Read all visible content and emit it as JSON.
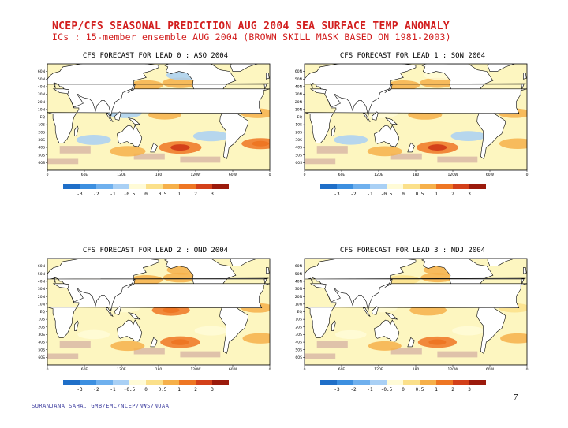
{
  "header": {
    "title": "NCEP/CFS SEASONAL PREDICTION AUG 2004 SEA SURFACE TEMP ANOMALY",
    "subtitle": "ICs : 15-member ensemble AUG 2004 (BROWN SKILL MASK BASED ON 1981-2003)"
  },
  "footer": {
    "credit": "SURANJANA SAHA, GMB/EMC/NCEP/NWS/NOAA",
    "page_number": "7"
  },
  "colors": {
    "ocean_neutral": "#fdf6c0",
    "land": "#ffffff",
    "title_red": "#d21e1e",
    "skill_mask_brown": "#d9b9a6"
  },
  "chart_data": [
    {
      "type": "heatmap",
      "title": "CFS FORECAST FOR LEAD 0 : ASO 2004",
      "lead": 0,
      "season": "ASO 2004",
      "y_ticks": [
        "60N",
        "50N",
        "40N",
        "30N",
        "20N",
        "10N",
        "EQ",
        "10S",
        "20S",
        "30S",
        "40S",
        "50S",
        "60S"
      ],
      "x_ticks": [
        "0",
        "60E",
        "120E",
        "180",
        "120W",
        "60W",
        "0"
      ],
      "anomalies": [
        {
          "region": "NE Pacific",
          "lon": 215,
          "lat": 45,
          "value": 0.8
        },
        {
          "region": "NW Pacific",
          "lon": 160,
          "lat": 42,
          "value": 0.6
        },
        {
          "region": "Central Equatorial Pacific",
          "lon": 190,
          "lat": 3,
          "value": 0.5
        },
        {
          "region": "Tropical Atlantic",
          "lon": 340,
          "lat": 5,
          "value": 0.6
        },
        {
          "region": "South Pacific",
          "lon": 215,
          "lat": -40,
          "value": 1.5
        },
        {
          "region": "S Indian Ocean",
          "lon": 75,
          "lat": -30,
          "value": -0.7
        },
        {
          "region": "Southern Ocean",
          "lon": 130,
          "lat": -45,
          "value": 0.8
        },
        {
          "region": "Maritime Continent",
          "lon": 125,
          "lat": 5,
          "value": -0.6
        },
        {
          "region": "E Pacific",
          "lon": 265,
          "lat": -25,
          "value": -0.8
        },
        {
          "region": "S Atlantic",
          "lon": 345,
          "lat": -35,
          "value": 1.0
        },
        {
          "region": "Gulf of Alaska",
          "lon": 220,
          "lat": 55,
          "value": -0.6
        }
      ]
    },
    {
      "type": "heatmap",
      "title": "CFS FORECAST FOR LEAD 1 : SON 2004",
      "lead": 1,
      "season": "SON 2004",
      "y_ticks": [
        "60N",
        "50N",
        "40N",
        "30N",
        "20N",
        "10N",
        "EQ",
        "10S",
        "20S",
        "30S",
        "40S",
        "50S",
        "60S"
      ],
      "x_ticks": [
        "0",
        "60E",
        "120E",
        "180",
        "120W",
        "60W",
        "0"
      ],
      "anomalies": [
        {
          "region": "NE Pacific",
          "lon": 215,
          "lat": 45,
          "value": 0.7
        },
        {
          "region": "NW Pacific",
          "lon": 160,
          "lat": 42,
          "value": 0.5
        },
        {
          "region": "Central Equatorial Pacific",
          "lon": 195,
          "lat": 3,
          "value": 0.6
        },
        {
          "region": "Tropical Atlantic",
          "lon": 340,
          "lat": 5,
          "value": 0.5
        },
        {
          "region": "South Pacific",
          "lon": 215,
          "lat": -40,
          "value": 1.4
        },
        {
          "region": "S Indian Ocean",
          "lon": 75,
          "lat": -30,
          "value": -0.6
        },
        {
          "region": "Southern Ocean",
          "lon": 130,
          "lat": -45,
          "value": 0.7
        },
        {
          "region": "Maritime Continent",
          "lon": 125,
          "lat": 5,
          "value": -0.5
        },
        {
          "region": "E Pacific",
          "lon": 265,
          "lat": -25,
          "value": -0.7
        },
        {
          "region": "S Atlantic",
          "lon": 345,
          "lat": -35,
          "value": 0.9
        },
        {
          "region": "Gulf of Alaska",
          "lon": 220,
          "lat": 55,
          "value": -0.5
        }
      ]
    },
    {
      "type": "heatmap",
      "title": "CFS FORECAST FOR LEAD 2 : OND 2004",
      "lead": 2,
      "season": "OND 2004",
      "y_ticks": [
        "60N",
        "50N",
        "40N",
        "30N",
        "20N",
        "10N",
        "EQ",
        "10S",
        "20S",
        "30S",
        "40S",
        "50S",
        "60S"
      ],
      "x_ticks": [
        "0",
        "60E",
        "120E",
        "180",
        "120W",
        "60W",
        "0"
      ],
      "anomalies": [
        {
          "region": "NE Pacific",
          "lon": 215,
          "lat": 45,
          "value": 0.6
        },
        {
          "region": "NW Pacific",
          "lon": 160,
          "lat": 42,
          "value": 0.5
        },
        {
          "region": "Central Equatorial Pacific",
          "lon": 200,
          "lat": 2,
          "value": 1.0
        },
        {
          "region": "Tropical Atlantic",
          "lon": 340,
          "lat": 5,
          "value": 0.5
        },
        {
          "region": "South Pacific",
          "lon": 215,
          "lat": -40,
          "value": 1.2
        },
        {
          "region": "S Indian Ocean",
          "lon": 75,
          "lat": -30,
          "value": -0.4
        },
        {
          "region": "Southern Ocean",
          "lon": 130,
          "lat": -45,
          "value": 0.6
        },
        {
          "region": "Maritime Continent",
          "lon": 125,
          "lat": 5,
          "value": -0.3
        },
        {
          "region": "E Pacific",
          "lon": 265,
          "lat": -25,
          "value": -0.5
        },
        {
          "region": "S Atlantic",
          "lon": 345,
          "lat": -35,
          "value": 0.8
        },
        {
          "region": "Gulf of Alaska",
          "lon": 220,
          "lat": 55,
          "value": 0.5
        }
      ]
    },
    {
      "type": "heatmap",
      "title": "CFS FORECAST FOR LEAD 3 : NDJ 2004",
      "lead": 3,
      "season": "NDJ 2004",
      "y_ticks": [
        "60N",
        "50N",
        "40N",
        "30N",
        "20N",
        "10N",
        "EQ",
        "10S",
        "20S",
        "30S",
        "40S",
        "50S",
        "60S"
      ],
      "x_ticks": [
        "0",
        "60E",
        "120E",
        "180",
        "120W",
        "60W",
        "0"
      ],
      "anomalies": [
        {
          "region": "NE Pacific",
          "lon": 215,
          "lat": 45,
          "value": 0.5
        },
        {
          "region": "NW Pacific",
          "lon": 160,
          "lat": 42,
          "value": 0.4
        },
        {
          "region": "Central Equatorial Pacific",
          "lon": 200,
          "lat": 2,
          "value": 0.9
        },
        {
          "region": "Tropical Atlantic",
          "lon": 340,
          "lat": 5,
          "value": 0.4
        },
        {
          "region": "South Pacific",
          "lon": 215,
          "lat": -40,
          "value": 1.1
        },
        {
          "region": "S Indian Ocean",
          "lon": 75,
          "lat": -30,
          "value": -0.3
        },
        {
          "region": "Southern Ocean",
          "lon": 130,
          "lat": -45,
          "value": 0.5
        },
        {
          "region": "Maritime Continent",
          "lon": 125,
          "lat": 5,
          "value": -0.3
        },
        {
          "region": "E Pacific",
          "lon": 265,
          "lat": -25,
          "value": -0.4
        },
        {
          "region": "S Atlantic",
          "lon": 345,
          "lat": -35,
          "value": 0.7
        },
        {
          "region": "Gulf of Alaska",
          "lon": 220,
          "lat": 55,
          "value": 0.6
        }
      ]
    }
  ],
  "colorbar": {
    "labels": [
      "-3",
      "-2",
      "-1",
      "-0.5",
      "0",
      "0.5",
      "1",
      "2",
      "3"
    ],
    "colors": [
      "#1f6fc8",
      "#3c8fe0",
      "#6fb0ee",
      "#a9d0f5",
      "#fffbd7",
      "#fbe08a",
      "#f6b04a",
      "#ee7623",
      "#d3401a",
      "#9b1a0c"
    ]
  }
}
